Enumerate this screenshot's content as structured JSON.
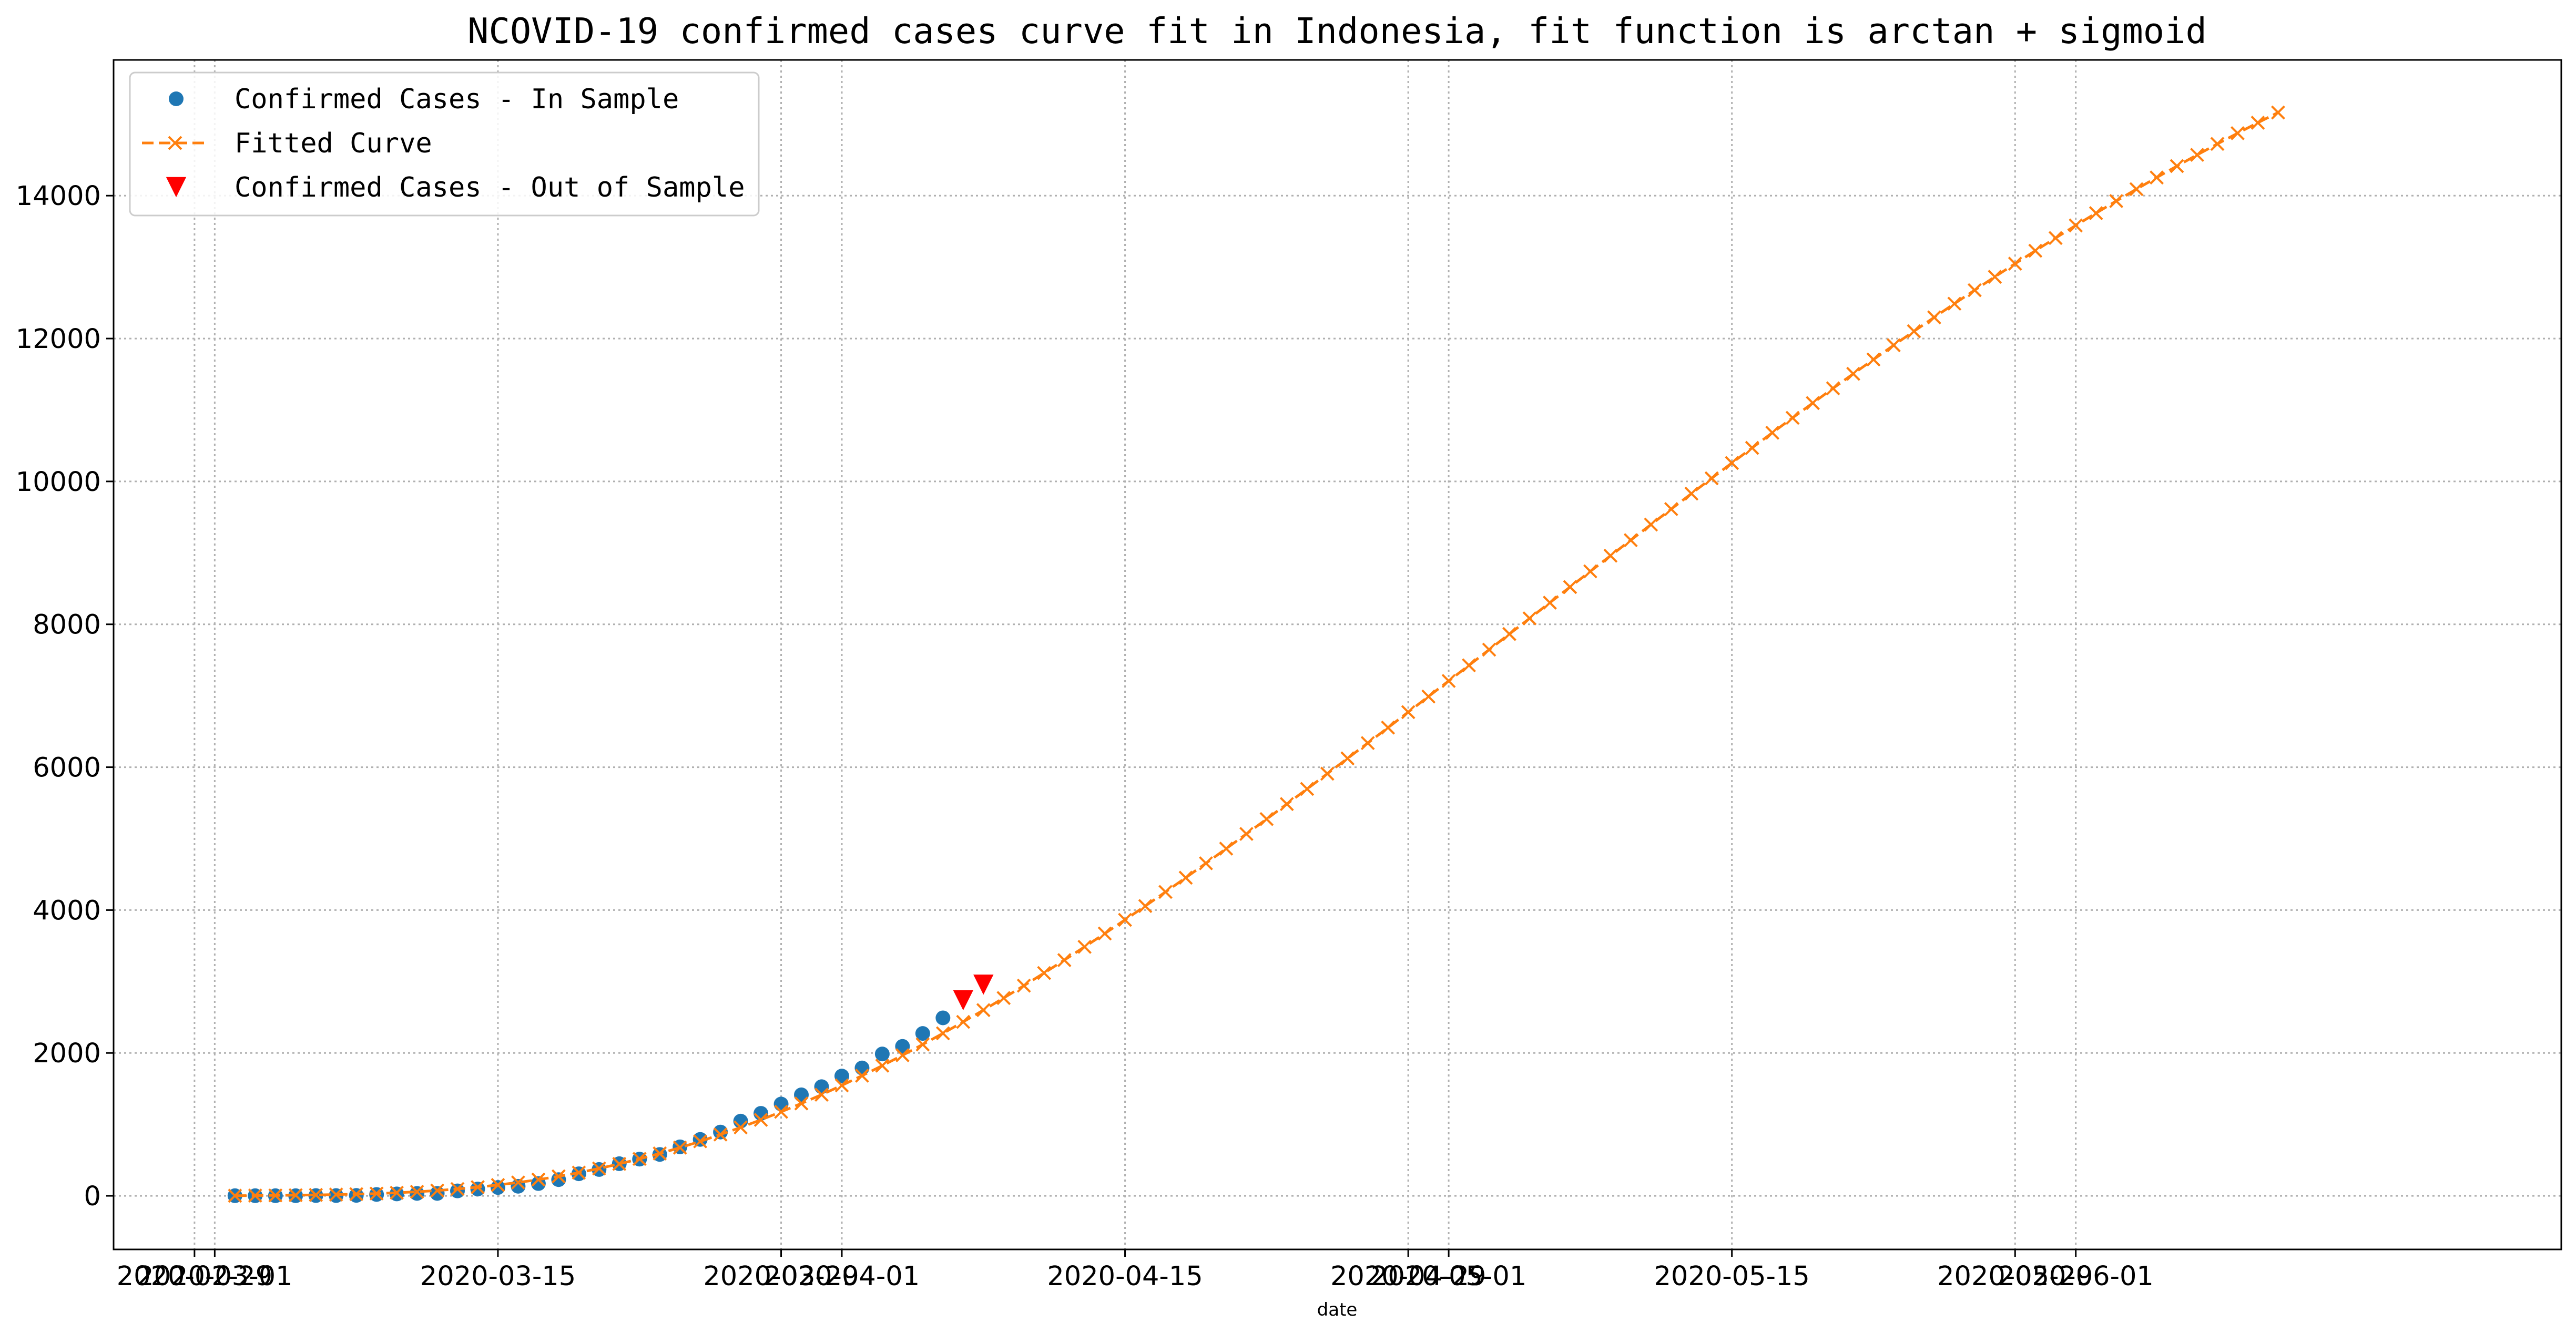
{
  "chart_data": {
    "type": "line",
    "title": "NCOVID-19 confirmed cases curve fit in Indonesia, fit function is arctan + sigmoid",
    "xlabel": "date",
    "ylabel": "",
    "ylim": [
      -750,
      15900
    ],
    "xlim": [
      "2020-02-25",
      "2020-06-25"
    ],
    "grid": true,
    "legend_position": "upper-left",
    "y_ticks": [
      0,
      2000,
      4000,
      6000,
      8000,
      10000,
      12000,
      14000
    ],
    "y_tick_labels": [
      "0",
      "2000",
      "4000",
      "6000",
      "8000",
      "10000",
      "12000",
      "14000"
    ],
    "x_ticks": [
      {
        "date": "2020-02-29",
        "label": "2020-02-29"
      },
      {
        "date": "2020-03-01",
        "label": "2020-03-01"
      },
      {
        "date": "2020-03-15",
        "label": "2020-03-15"
      },
      {
        "date": "2020-03-29",
        "label": "2020-03-29"
      },
      {
        "date": "2020-04-01",
        "label": "2020-04-01"
      },
      {
        "date": "2020-04-15",
        "label": "2020-04-15"
      },
      {
        "date": "2020-04-29",
        "label": "2020-04-29"
      },
      {
        "date": "2020-05-01",
        "label": "2020-05-01"
      },
      {
        "date": "2020-05-15",
        "label": "2020-05-15"
      },
      {
        "date": "2020-05-29",
        "label": "2020-05-29"
      },
      {
        "date": "2020-06-01",
        "label": "2020-06-01"
      }
    ],
    "series": [
      {
        "name": "Confirmed Cases - In Sample",
        "style": "scatter",
        "marker": "circle",
        "color": "#1f77b4",
        "x_start": "2020-03-02",
        "x_step_days": 1,
        "values": [
          2,
          2,
          2,
          2,
          4,
          4,
          6,
          19,
          27,
          34,
          34,
          69,
          96,
          117,
          134,
          172,
          227,
          309,
          369,
          450,
          514,
          579,
          686,
          790,
          893,
          1046,
          1155,
          1285,
          1414,
          1528,
          1677,
          1790,
          1986,
          2092,
          2273,
          2491
        ]
      },
      {
        "name": "Fitted Curve",
        "style": "dashed-line",
        "marker": "x",
        "color": "#ff7f0e",
        "x_start": "2020-03-02",
        "x_step_days": 1,
        "values": [
          2,
          4,
          6,
          9,
          13,
          18,
          24,
          32,
          43,
          57,
          74,
          96,
          122,
          152,
          187,
          227,
          273,
          325,
          383,
          447,
          517,
          593,
          675,
          763,
          858,
          958,
          1064,
          1176,
          1293,
          1416,
          1546,
          1682,
          1822,
          1968,
          2119,
          2275,
          2435,
          2600,
          2769,
          2942,
          3119,
          3300,
          3485,
          3672,
          3863,
          4057,
          4254,
          4453,
          4655,
          4860,
          5066,
          5274,
          5484,
          5696,
          5909,
          6123,
          6338,
          6554,
          6771,
          6989,
          7207,
          7426,
          7645,
          7864,
          8083,
          8303,
          8522,
          8741,
          8960,
          9178,
          9396,
          9613,
          9829,
          10044,
          10258,
          10470,
          10681,
          10890,
          11097,
          11303,
          11506,
          11707,
          11906,
          12102,
          12296,
          12488,
          12677,
          12864,
          13048,
          13229,
          13407,
          13583,
          13755,
          13925,
          14091,
          14254,
          14414,
          14571,
          14724,
          14874,
          15021,
          15164
        ]
      },
      {
        "name": "Confirmed Cases - Out of Sample",
        "style": "scatter",
        "marker": "triangle-down",
        "color": "#ff0000",
        "x": [
          "2020-04-07",
          "2020-04-08"
        ],
        "values": [
          2738,
          2956
        ]
      }
    ]
  }
}
